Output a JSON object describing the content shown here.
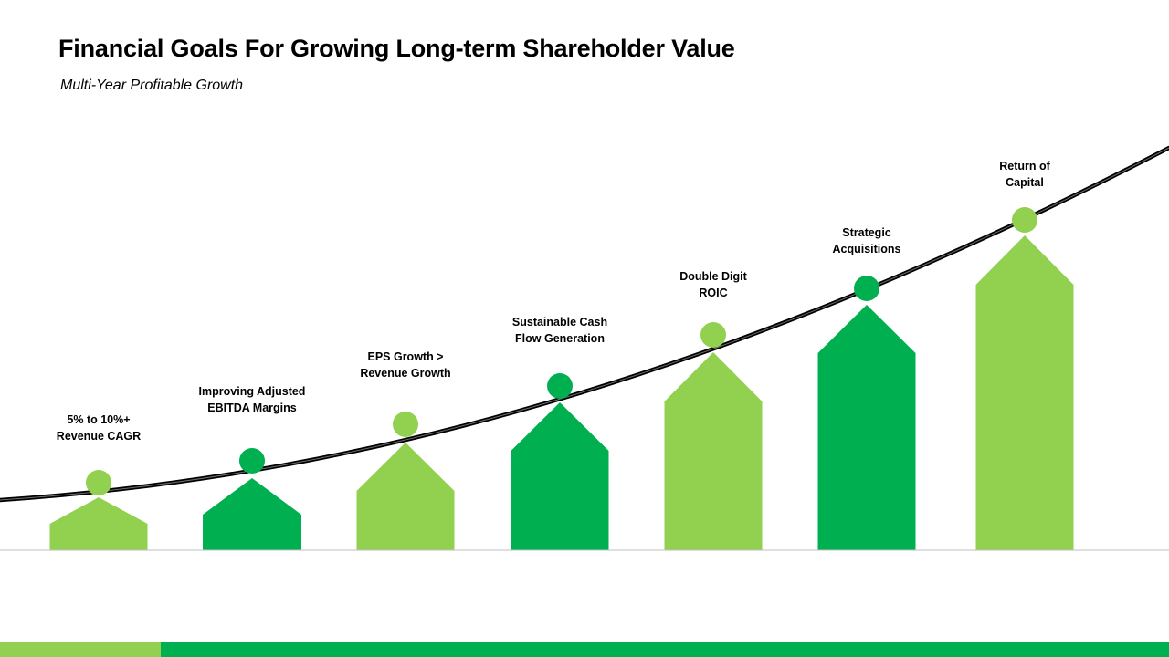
{
  "title": "Financial Goals For Growing Long-term Shareholder Value",
  "subtitle": "Multi-Year Profitable Growth",
  "colors": {
    "light_green": "#92d050",
    "dark_green": "#00b050",
    "curve": "#000000",
    "baseline": "#bfbfbf"
  },
  "goals": [
    {
      "label": "5% to 10%+\nRevenue CAGR",
      "color": "light_green"
    },
    {
      "label": "Improving Adjusted\nEBITDA Margins",
      "color": "dark_green"
    },
    {
      "label": "EPS Growth >\nRevenue Growth",
      "color": "light_green"
    },
    {
      "label": "Sustainable Cash\nFlow Generation",
      "color": "dark_green"
    },
    {
      "label": "Double Digit\nROIC",
      "color": "light_green"
    },
    {
      "label": "Strategic\nAcquisitions",
      "color": "dark_green"
    },
    {
      "label": "Return of\nCapital",
      "color": "light_green"
    }
  ]
}
